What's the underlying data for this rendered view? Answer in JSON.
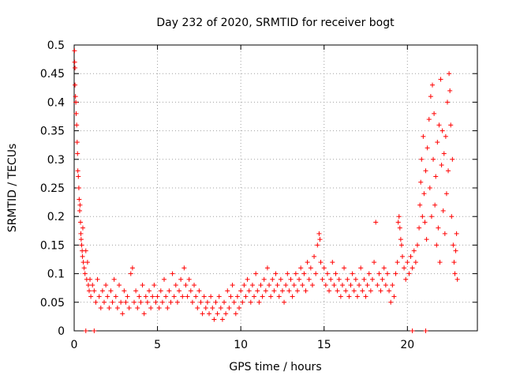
{
  "chart_data": {
    "type": "scatter",
    "title": "Day 232 of 2020, SRMTID for receiver bogt",
    "xlabel": "GPS time / hours",
    "ylabel": "SRMTID / TECUs",
    "xlim": [
      0,
      24.2
    ],
    "ylim": [
      0,
      0.5
    ],
    "xticks": [
      0,
      5,
      10,
      15,
      20
    ],
    "xtick_labels": [
      "0",
      "5",
      "10",
      "15",
      "20"
    ],
    "yticks": [
      0,
      0.05,
      0.1,
      0.15,
      0.2,
      0.25,
      0.3,
      0.35,
      0.4,
      0.45,
      0.5
    ],
    "ytick_labels": [
      "0",
      "0.05",
      "0.1",
      "0.15",
      "0.2",
      "0.25",
      "0.3",
      "0.35",
      "0.4",
      "0.45",
      "0.5"
    ],
    "grid": true,
    "marker": "+",
    "series": [
      {
        "name": "SRMTID",
        "color": "#ff0000",
        "points": [
          [
            0.02,
            0.49
          ],
          [
            0.03,
            0.47
          ],
          [
            0.05,
            0.46
          ],
          [
            0.05,
            0.43
          ],
          [
            0.08,
            0.41
          ],
          [
            0.1,
            0.4
          ],
          [
            0.12,
            0.38
          ],
          [
            0.15,
            0.36
          ],
          [
            0.18,
            0.33
          ],
          [
            0.2,
            0.31
          ],
          [
            0.22,
            0.28
          ],
          [
            0.25,
            0.27
          ],
          [
            0.28,
            0.25
          ],
          [
            0.3,
            0.23
          ],
          [
            0.33,
            0.21
          ],
          [
            0.35,
            0.22
          ],
          [
            0.38,
            0.19
          ],
          [
            0.4,
            0.17
          ],
          [
            0.42,
            0.16
          ],
          [
            0.45,
            0.15
          ],
          [
            0.48,
            0.14
          ],
          [
            0.5,
            0.13
          ],
          [
            0.52,
            0.18
          ],
          [
            0.55,
            0.12
          ],
          [
            0.6,
            0.11
          ],
          [
            0.65,
            0.1
          ],
          [
            0.7,
            0.14
          ],
          [
            0.75,
            0.09
          ],
          [
            0.8,
            0.12
          ],
          [
            0.85,
            0.08
          ],
          [
            0.9,
            0.07
          ],
          [
            0.95,
            0.09
          ],
          [
            1.0,
            0.06
          ],
          [
            1.1,
            0.08
          ],
          [
            1.2,
            0.07
          ],
          [
            1.3,
            0.05
          ],
          [
            1.4,
            0.09
          ],
          [
            1.5,
            0.06
          ],
          [
            1.6,
            0.04
          ],
          [
            1.7,
            0.07
          ],
          [
            1.8,
            0.05
          ],
          [
            1.9,
            0.08
          ],
          [
            2.0,
            0.06
          ],
          [
            2.1,
            0.04
          ],
          [
            2.2,
            0.07
          ],
          [
            2.3,
            0.05
          ],
          [
            2.4,
            0.09
          ],
          [
            2.5,
            0.06
          ],
          [
            2.6,
            0.04
          ],
          [
            2.7,
            0.08
          ],
          [
            2.8,
            0.05
          ],
          [
            2.9,
            0.03
          ],
          [
            3.0,
            0.07
          ],
          [
            3.1,
            0.05
          ],
          [
            3.2,
            0.06
          ],
          [
            3.3,
            0.04
          ],
          [
            3.4,
            0.1
          ],
          [
            3.5,
            0.11
          ],
          [
            3.6,
            0.05
          ],
          [
            3.7,
            0.07
          ],
          [
            3.8,
            0.04
          ],
          [
            3.9,
            0.06
          ],
          [
            4.0,
            0.05
          ],
          [
            4.1,
            0.08
          ],
          [
            4.2,
            0.03
          ],
          [
            4.3,
            0.06
          ],
          [
            4.4,
            0.05
          ],
          [
            4.5,
            0.07
          ],
          [
            4.6,
            0.04
          ],
          [
            4.7,
            0.06
          ],
          [
            4.8,
            0.08
          ],
          [
            4.9,
            0.05
          ],
          [
            5.0,
            0.06
          ],
          [
            5.1,
            0.04
          ],
          [
            5.2,
            0.07
          ],
          [
            5.3,
            0.05
          ],
          [
            5.4,
            0.09
          ],
          [
            5.5,
            0.06
          ],
          [
            5.6,
            0.04
          ],
          [
            5.7,
            0.07
          ],
          [
            5.8,
            0.05
          ],
          [
            5.9,
            0.1
          ],
          [
            6.0,
            0.06
          ],
          [
            6.1,
            0.08
          ],
          [
            6.2,
            0.05
          ],
          [
            6.3,
            0.07
          ],
          [
            6.4,
            0.09
          ],
          [
            6.5,
            0.06
          ],
          [
            6.6,
            0.11
          ],
          [
            6.7,
            0.08
          ],
          [
            6.8,
            0.06
          ],
          [
            6.9,
            0.09
          ],
          [
            7.0,
            0.07
          ],
          [
            7.1,
            0.05
          ],
          [
            7.2,
            0.08
          ],
          [
            7.3,
            0.06
          ],
          [
            7.4,
            0.04
          ],
          [
            7.5,
            0.07
          ],
          [
            7.6,
            0.05
          ],
          [
            7.7,
            0.03
          ],
          [
            7.8,
            0.06
          ],
          [
            7.9,
            0.04
          ],
          [
            8.0,
            0.05
          ],
          [
            8.1,
            0.03
          ],
          [
            8.2,
            0.06
          ],
          [
            8.3,
            0.04
          ],
          [
            8.4,
            0.02
          ],
          [
            8.5,
            0.05
          ],
          [
            8.6,
            0.03
          ],
          [
            8.7,
            0.06
          ],
          [
            8.8,
            0.04
          ],
          [
            8.9,
            0.02
          ],
          [
            9.0,
            0.05
          ],
          [
            9.1,
            0.03
          ],
          [
            9.2,
            0.07
          ],
          [
            9.3,
            0.04
          ],
          [
            9.4,
            0.06
          ],
          [
            9.5,
            0.08
          ],
          [
            9.6,
            0.05
          ],
          [
            9.7,
            0.03
          ],
          [
            9.8,
            0.06
          ],
          [
            9.9,
            0.04
          ],
          [
            10.0,
            0.07
          ],
          [
            10.1,
            0.05
          ],
          [
            10.2,
            0.08
          ],
          [
            10.3,
            0.06
          ],
          [
            10.4,
            0.09
          ],
          [
            10.5,
            0.07
          ],
          [
            10.6,
            0.05
          ],
          [
            10.7,
            0.08
          ],
          [
            10.8,
            0.06
          ],
          [
            10.9,
            0.1
          ],
          [
            11.0,
            0.07
          ],
          [
            11.1,
            0.05
          ],
          [
            11.2,
            0.08
          ],
          [
            11.3,
            0.06
          ],
          [
            11.4,
            0.09
          ],
          [
            11.5,
            0.07
          ],
          [
            11.6,
            0.11
          ],
          [
            11.7,
            0.08
          ],
          [
            11.8,
            0.06
          ],
          [
            11.9,
            0.09
          ],
          [
            12.0,
            0.07
          ],
          [
            12.1,
            0.1
          ],
          [
            12.2,
            0.08
          ],
          [
            12.3,
            0.06
          ],
          [
            12.4,
            0.09
          ],
          [
            12.5,
            0.07
          ],
          [
            12.6,
            0.05
          ],
          [
            12.7,
            0.08
          ],
          [
            12.8,
            0.1
          ],
          [
            12.9,
            0.07
          ],
          [
            13.0,
            0.09
          ],
          [
            13.1,
            0.06
          ],
          [
            13.2,
            0.08
          ],
          [
            13.3,
            0.1
          ],
          [
            13.4,
            0.07
          ],
          [
            13.5,
            0.09
          ],
          [
            13.6,
            0.11
          ],
          [
            13.7,
            0.08
          ],
          [
            13.8,
            0.1
          ],
          [
            13.9,
            0.07
          ],
          [
            14.0,
            0.12
          ],
          [
            14.1,
            0.09
          ],
          [
            14.2,
            0.11
          ],
          [
            14.3,
            0.08
          ],
          [
            14.4,
            0.13
          ],
          [
            14.5,
            0.1
          ],
          [
            14.6,
            0.15
          ],
          [
            14.7,
            0.17
          ],
          [
            14.75,
            0.16
          ],
          [
            14.8,
            0.12
          ],
          [
            14.9,
            0.09
          ],
          [
            15.0,
            0.11
          ],
          [
            15.1,
            0.08
          ],
          [
            15.2,
            0.1
          ],
          [
            15.3,
            0.07
          ],
          [
            15.4,
            0.09
          ],
          [
            15.5,
            0.12
          ],
          [
            15.6,
            0.08
          ],
          [
            15.7,
            0.1
          ],
          [
            15.8,
            0.07
          ],
          [
            15.9,
            0.09
          ],
          [
            16.0,
            0.06
          ],
          [
            16.1,
            0.08
          ],
          [
            16.2,
            0.11
          ],
          [
            16.3,
            0.07
          ],
          [
            16.4,
            0.09
          ],
          [
            16.5,
            0.06
          ],
          [
            16.6,
            0.08
          ],
          [
            16.7,
            0.1
          ],
          [
            16.8,
            0.07
          ],
          [
            16.9,
            0.09
          ],
          [
            17.0,
            0.06
          ],
          [
            17.1,
            0.08
          ],
          [
            17.2,
            0.11
          ],
          [
            17.3,
            0.07
          ],
          [
            17.4,
            0.09
          ],
          [
            17.5,
            0.06
          ],
          [
            17.6,
            0.08
          ],
          [
            17.7,
            0.1
          ],
          [
            17.8,
            0.07
          ],
          [
            17.9,
            0.09
          ],
          [
            18.0,
            0.12
          ],
          [
            18.1,
            0.19
          ],
          [
            18.2,
            0.08
          ],
          [
            18.3,
            0.1
          ],
          [
            18.4,
            0.07
          ],
          [
            18.5,
            0.09
          ],
          [
            18.6,
            0.11
          ],
          [
            18.7,
            0.08
          ],
          [
            18.8,
            0.1
          ],
          [
            18.9,
            0.07
          ],
          [
            19.0,
            0.05
          ],
          [
            19.1,
            0.08
          ],
          [
            19.2,
            0.06
          ],
          [
            19.3,
            0.1
          ],
          [
            19.4,
            0.12
          ],
          [
            19.45,
            0.19
          ],
          [
            19.5,
            0.2
          ],
          [
            19.55,
            0.18
          ],
          [
            19.6,
            0.16
          ],
          [
            19.65,
            0.15
          ],
          [
            19.7,
            0.13
          ],
          [
            19.8,
            0.11
          ],
          [
            19.9,
            0.09
          ],
          [
            20.0,
            0.12
          ],
          [
            20.1,
            0.1
          ],
          [
            20.2,
            0.13
          ],
          [
            20.3,
            0.11
          ],
          [
            20.4,
            0.14
          ],
          [
            20.5,
            0.12
          ],
          [
            20.6,
            0.15
          ],
          [
            20.7,
            0.18
          ],
          [
            20.75,
            0.22
          ],
          [
            20.8,
            0.26
          ],
          [
            20.85,
            0.3
          ],
          [
            20.9,
            0.2
          ],
          [
            20.95,
            0.34
          ],
          [
            21.0,
            0.24
          ],
          [
            21.05,
            0.19
          ],
          [
            21.1,
            0.28
          ],
          [
            21.15,
            0.16
          ],
          [
            21.2,
            0.32
          ],
          [
            21.3,
            0.37
          ],
          [
            21.35,
            0.25
          ],
          [
            21.4,
            0.41
          ],
          [
            21.45,
            0.2
          ],
          [
            21.5,
            0.43
          ],
          [
            21.55,
            0.3
          ],
          [
            21.6,
            0.38
          ],
          [
            21.65,
            0.22
          ],
          [
            21.7,
            0.27
          ],
          [
            21.75,
            0.15
          ],
          [
            21.8,
            0.33
          ],
          [
            21.85,
            0.18
          ],
          [
            21.9,
            0.36
          ],
          [
            21.95,
            0.12
          ],
          [
            22.0,
            0.44
          ],
          [
            22.05,
            0.29
          ],
          [
            22.1,
            0.35
          ],
          [
            22.15,
            0.21
          ],
          [
            22.2,
            0.31
          ],
          [
            22.25,
            0.17
          ],
          [
            22.3,
            0.34
          ],
          [
            22.35,
            0.24
          ],
          [
            22.4,
            0.4
          ],
          [
            22.45,
            0.28
          ],
          [
            22.5,
            0.45
          ],
          [
            22.55,
            0.42
          ],
          [
            22.6,
            0.36
          ],
          [
            22.65,
            0.2
          ],
          [
            22.7,
            0.3
          ],
          [
            22.75,
            0.15
          ],
          [
            22.8,
            0.12
          ],
          [
            22.85,
            0.1
          ],
          [
            22.9,
            0.14
          ],
          [
            22.95,
            0.17
          ],
          [
            23.0,
            0.09
          ],
          [
            0.7,
            0.0
          ],
          [
            1.2,
            0.0
          ],
          [
            20.3,
            0.0
          ],
          [
            21.1,
            0.0
          ]
        ]
      }
    ]
  }
}
